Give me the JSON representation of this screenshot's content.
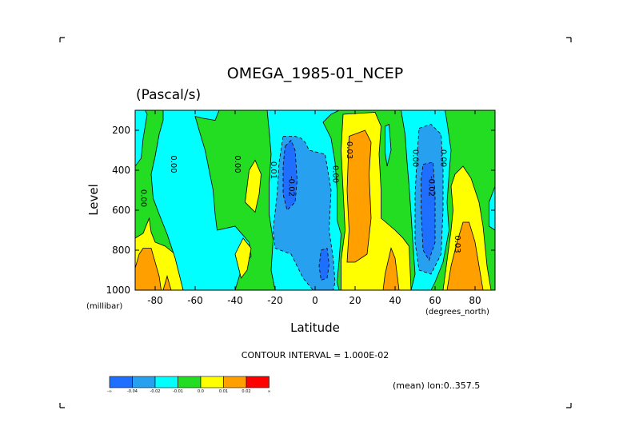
{
  "chart_data": {
    "type": "heatmap",
    "title": "OMEGA_1985-01_NCEP",
    "units": "(Pascal/s)",
    "xlabel": "Latitude",
    "x_unit": "(degrees_north)",
    "ylabel": "Level",
    "y_unit": "(millibar)",
    "xlim": [
      -90,
      90
    ],
    "ylim": [
      1000,
      100
    ],
    "x_ticks": [
      -80,
      -60,
      -40,
      -20,
      0,
      20,
      40,
      60,
      80
    ],
    "y_ticks": [
      200,
      400,
      600,
      800,
      1000
    ],
    "contour_interval_text": "CONTOUR INTERVAL = 1.000E-02",
    "footer_note": "(mean) lon:0..357.5",
    "colorbar": {
      "colors": [
        "#1e6eff",
        "#28a0f0",
        "#00ffff",
        "#22dd22",
        "#ffff00",
        "#ffa000",
        "#ff0000"
      ],
      "labels": [
        "-∞",
        "-0.04",
        "-0.02",
        "-0.01",
        "0.0",
        "0.01",
        "0.02",
        "∞"
      ]
    },
    "contour_labels": [
      {
        "text": "0.00",
        "lat": -87,
        "lev": 540
      },
      {
        "text": "0.00",
        "lat": -72,
        "lev": 370
      },
      {
        "text": "0.00",
        "lat": -40,
        "lev": 370
      },
      {
        "text": "0.01",
        "lat": -22,
        "lev": 400
      },
      {
        "text": "-0.02",
        "lat": -13,
        "lev": 480
      },
      {
        "text": "0.00",
        "lat": 9,
        "lev": 420
      },
      {
        "text": "0.03",
        "lat": 16,
        "lev": 300
      },
      {
        "text": "0.00",
        "lat": 49,
        "lev": 340
      },
      {
        "text": "-0.02",
        "lat": 57,
        "lev": 480
      },
      {
        "text": "0.00",
        "lat": 63,
        "lev": 340
      },
      {
        "text": "0.03",
        "lat": 70,
        "lev": 770
      }
    ],
    "regions": [
      {
        "level": 3,
        "pts": [
          [
            -90,
            100
          ],
          [
            90,
            100
          ],
          [
            90,
            1000
          ],
          [
            -90,
            1000
          ]
        ]
      },
      {
        "level": 4,
        "pts": [
          [
            -90,
            740
          ],
          [
            -86,
            715
          ],
          [
            -83,
            640
          ],
          [
            -82,
            710
          ],
          [
            -80,
            760
          ],
          [
            -75,
            780
          ],
          [
            -70,
            820
          ],
          [
            -68,
            880
          ],
          [
            -66,
            1000
          ],
          [
            -90,
            1000
          ]
        ]
      },
      {
        "level": 5,
        "pts": [
          [
            -90,
            890
          ],
          [
            -88,
            820
          ],
          [
            -86,
            790
          ],
          [
            -82,
            790
          ],
          [
            -80,
            860
          ],
          [
            -78,
            930
          ],
          [
            -77,
            1000
          ],
          [
            -90,
            1000
          ]
        ]
      },
      {
        "level": 5,
        "pts": [
          [
            -76,
            1000
          ],
          [
            -74,
            930
          ],
          [
            -72,
            1000
          ]
        ]
      },
      {
        "level": 2,
        "pts": [
          [
            -90,
            100
          ],
          [
            -85,
            100
          ],
          [
            -84,
            120
          ],
          [
            -86,
            240
          ],
          [
            -87,
            340
          ],
          [
            -90,
            380
          ]
        ]
      },
      {
        "level": 2,
        "pts": [
          [
            -76,
            100
          ],
          [
            -48,
            100
          ],
          [
            -50,
            150
          ],
          [
            -56,
            140
          ],
          [
            -60,
            130
          ],
          [
            -58,
            200
          ],
          [
            -55,
            300
          ],
          [
            -53,
            400
          ],
          [
            -51,
            500
          ],
          [
            -50,
            620
          ],
          [
            -49,
            700
          ],
          [
            -40,
            680
          ],
          [
            -33,
            760
          ],
          [
            -32,
            830
          ],
          [
            -37,
            900
          ],
          [
            -40,
            1000
          ],
          [
            -66,
            1000
          ],
          [
            -68,
            920
          ],
          [
            -70,
            840
          ],
          [
            -74,
            720
          ],
          [
            -78,
            620
          ],
          [
            -81,
            540
          ],
          [
            -82,
            420
          ],
          [
            -80,
            330
          ],
          [
            -78,
            220
          ],
          [
            -76,
            150
          ]
        ]
      },
      {
        "level": 4,
        "pts": [
          [
            -35,
            560
          ],
          [
            -33,
            400
          ],
          [
            -30,
            350
          ],
          [
            -27,
            420
          ],
          [
            -28,
            520
          ],
          [
            -30,
            610
          ]
        ]
      },
      {
        "level": 4,
        "pts": [
          [
            -40,
            820
          ],
          [
            -36,
            740
          ],
          [
            -32,
            790
          ],
          [
            -34,
            900
          ],
          [
            -37,
            940
          ]
        ]
      },
      {
        "level": 2,
        "pts": [
          [
            -24,
            100
          ],
          [
            12,
            100
          ],
          [
            8,
            120
          ],
          [
            4,
            160
          ],
          [
            8,
            240
          ],
          [
            10,
            360
          ],
          [
            11,
            500
          ],
          [
            11,
            650
          ],
          [
            13,
            720
          ],
          [
            12,
            850
          ],
          [
            11,
            960
          ],
          [
            12,
            1000
          ],
          [
            -20,
            1000
          ],
          [
            -22,
            900
          ],
          [
            -21,
            750
          ],
          [
            -23,
            620
          ],
          [
            -23,
            470
          ],
          [
            -22,
            320
          ],
          [
            -23,
            200
          ]
        ]
      },
      {
        "level": 1,
        "pts": [
          [
            -16,
            230
          ],
          [
            -10,
            230
          ],
          [
            -7,
            240
          ],
          [
            -5,
            260
          ],
          [
            -3,
            300
          ],
          [
            5,
            320
          ],
          [
            8,
            500
          ],
          [
            7,
            700
          ],
          [
            9,
            840
          ],
          [
            10,
            960
          ],
          [
            9,
            1000
          ],
          [
            -1,
            1000
          ],
          [
            -6,
            940
          ],
          [
            -12,
            820
          ],
          [
            -20,
            790
          ],
          [
            -21,
            700
          ],
          [
            -19,
            520
          ],
          [
            -18,
            360
          ]
        ]
      },
      {
        "level": 0,
        "pts": [
          [
            -15,
            280
          ],
          [
            -12,
            250
          ],
          [
            -10,
            300
          ],
          [
            -9,
            450
          ],
          [
            -10,
            560
          ],
          [
            -14,
            600
          ],
          [
            -16,
            520
          ],
          [
            -16,
            380
          ]
        ]
      },
      {
        "level": 0,
        "pts": [
          [
            3,
            800
          ],
          [
            6,
            790
          ],
          [
            7,
            870
          ],
          [
            6,
            940
          ],
          [
            3,
            950
          ],
          [
            2,
            880
          ]
        ]
      },
      {
        "level": 4,
        "pts": [
          [
            14,
            120
          ],
          [
            30,
            110
          ],
          [
            33,
            180
          ],
          [
            32,
            320
          ],
          [
            33,
            500
          ],
          [
            33,
            640
          ],
          [
            40,
            700
          ],
          [
            44,
            740
          ],
          [
            47,
            780
          ],
          [
            48,
            1000
          ],
          [
            13,
            1000
          ],
          [
            13,
            850
          ],
          [
            15,
            700
          ],
          [
            14,
            500
          ],
          [
            13,
            300
          ]
        ]
      },
      {
        "level": 5,
        "pts": [
          [
            17,
            230
          ],
          [
            25,
            200
          ],
          [
            28,
            260
          ],
          [
            27,
            420
          ],
          [
            28,
            640
          ],
          [
            26,
            820
          ],
          [
            20,
            860
          ],
          [
            16,
            860
          ],
          [
            17,
            700
          ],
          [
            16,
            500
          ]
        ]
      },
      {
        "level": 5,
        "pts": [
          [
            34,
            1000
          ],
          [
            35,
            920
          ],
          [
            38,
            790
          ],
          [
            40,
            840
          ],
          [
            42,
            1000
          ]
        ]
      },
      {
        "level": 2,
        "pts": [
          [
            35,
            180
          ],
          [
            37,
            170
          ],
          [
            38,
            300
          ],
          [
            36,
            380
          ],
          [
            35,
            310
          ]
        ]
      },
      {
        "level": 2,
        "pts": [
          [
            43,
            100
          ],
          [
            65,
            100
          ],
          [
            66,
            160
          ],
          [
            68,
            300
          ],
          [
            67,
            420
          ],
          [
            66,
            560
          ],
          [
            67,
            700
          ],
          [
            64,
            860
          ],
          [
            60,
            960
          ],
          [
            58,
            1000
          ],
          [
            48,
            1000
          ],
          [
            50,
            920
          ],
          [
            49,
            780
          ],
          [
            48,
            620
          ],
          [
            47,
            480
          ],
          [
            46,
            360
          ],
          [
            45,
            220
          ]
        ]
      },
      {
        "level": 1,
        "pts": [
          [
            52,
            190
          ],
          [
            58,
            170
          ],
          [
            63,
            220
          ],
          [
            64,
            380
          ],
          [
            64,
            600
          ],
          [
            63,
            820
          ],
          [
            58,
            920
          ],
          [
            52,
            900
          ],
          [
            50,
            760
          ],
          [
            50,
            520
          ],
          [
            51,
            330
          ]
        ]
      },
      {
        "level": 0,
        "pts": [
          [
            54,
            370
          ],
          [
            59,
            360
          ],
          [
            60,
            520
          ],
          [
            60,
            760
          ],
          [
            57,
            850
          ],
          [
            54,
            800
          ],
          [
            53,
            600
          ],
          [
            53,
            450
          ]
        ]
      },
      {
        "level": 4,
        "pts": [
          [
            64,
            1000
          ],
          [
            66,
            850
          ],
          [
            68,
            700
          ],
          [
            69,
            600
          ],
          [
            68,
            480
          ],
          [
            70,
            420
          ],
          [
            74,
            380
          ],
          [
            78,
            440
          ],
          [
            82,
            560
          ],
          [
            84,
            680
          ],
          [
            86,
            880
          ],
          [
            88,
            1000
          ]
        ]
      },
      {
        "level": 5,
        "pts": [
          [
            66,
            1000
          ],
          [
            68,
            880
          ],
          [
            71,
            760
          ],
          [
            74,
            660
          ],
          [
            77,
            660
          ],
          [
            80,
            760
          ],
          [
            82,
            880
          ],
          [
            84,
            1000
          ]
        ]
      },
      {
        "level": 2,
        "pts": [
          [
            87,
            560
          ],
          [
            90,
            480
          ],
          [
            90,
            700
          ],
          [
            87,
            680
          ]
        ]
      }
    ]
  }
}
